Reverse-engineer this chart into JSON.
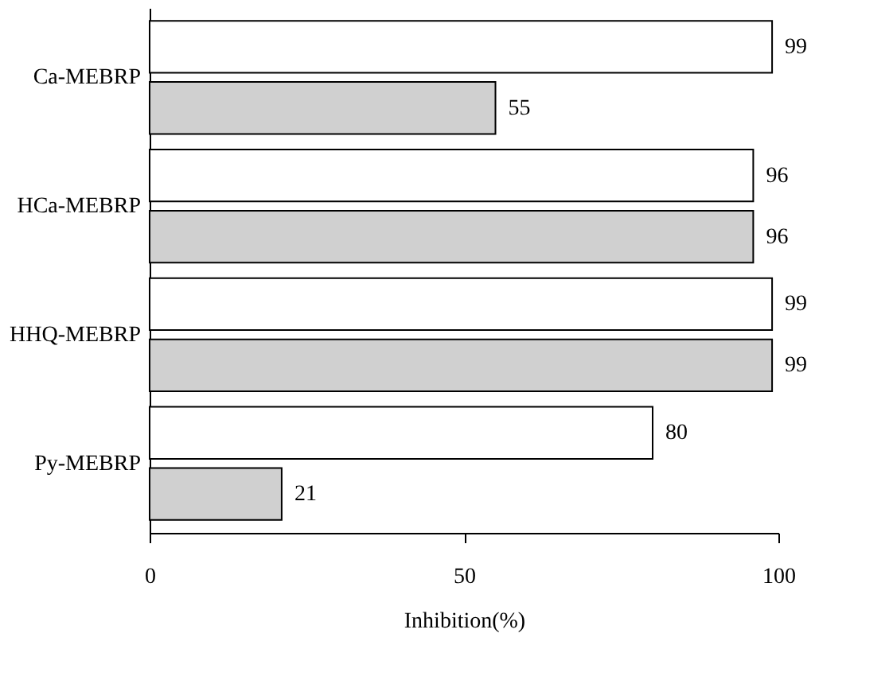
{
  "chart_data": {
    "type": "bar",
    "orientation": "horizontal",
    "xlabel": "Inhibition(%)",
    "categories": [
      "Ca-MEBRP",
      "HCa-MEBRP",
      "HHQ-MEBRP",
      "Py-MEBRP"
    ],
    "series": [
      {
        "color": "#ffffff",
        "values": [
          99,
          96,
          99,
          80
        ]
      },
      {
        "color": "#d0d0d0",
        "values": [
          55,
          96,
          99,
          21
        ]
      }
    ],
    "xlim": [
      0,
      100
    ],
    "xticks": [
      0,
      50,
      100
    ],
    "data_labels": true,
    "grid": false
  }
}
